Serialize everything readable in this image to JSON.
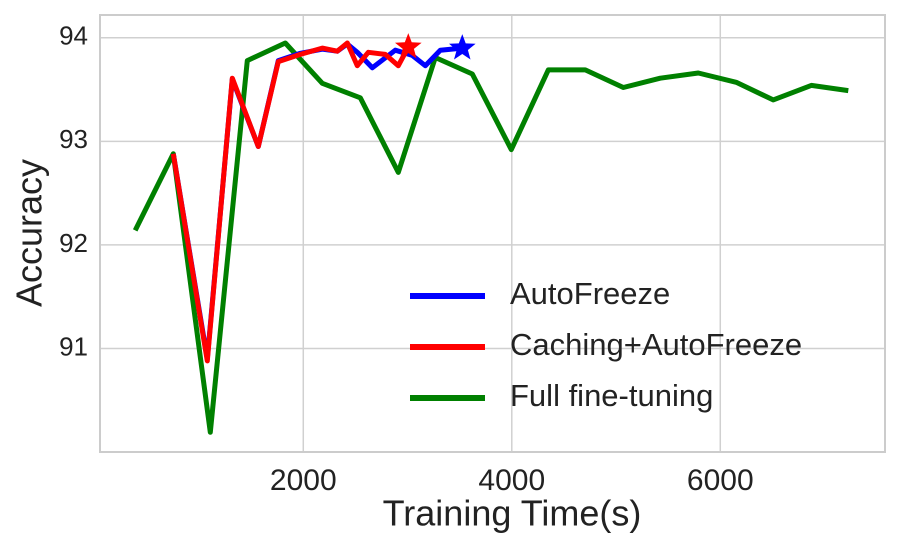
{
  "chart_data": {
    "type": "line",
    "x_label": "Training Time(s)",
    "y_label": "Accuracy",
    "xlim": [
      50,
      7580
    ],
    "ylim": [
      90.0,
      94.22
    ],
    "xticks": [
      2000,
      4000,
      6000
    ],
    "yticks": [
      91,
      92,
      93,
      94
    ],
    "grid": true,
    "legend_position": "lower right",
    "series": [
      {
        "name": "AutoFreeze",
        "color": "#0000ff",
        "end_marker": "star",
        "x": [
          753,
          1079,
          1319,
          1568,
          1760,
          1971,
          2182,
          2326,
          2422,
          2518,
          2662,
          2883,
          3046,
          3170,
          3314,
          3525
        ],
        "values": [
          92.88,
          90.9,
          93.6,
          92.95,
          93.78,
          93.85,
          93.89,
          93.87,
          93.94,
          93.86,
          93.71,
          93.88,
          93.83,
          93.73,
          93.88,
          93.9
        ]
      },
      {
        "name": "Caching+AutoFreeze",
        "color": "#ff0000",
        "end_marker": "star",
        "x": [
          753,
          1079,
          1319,
          1568,
          1760,
          1971,
          2182,
          2326,
          2422,
          2518,
          2624,
          2787,
          2911,
          3007
        ],
        "values": [
          92.88,
          90.88,
          93.61,
          92.95,
          93.77,
          93.84,
          93.9,
          93.87,
          93.95,
          93.73,
          93.86,
          93.84,
          93.73,
          93.91
        ]
      },
      {
        "name": "Full fine-tuning",
        "color": "#008000",
        "x": [
          388,
          753,
          1108,
          1463,
          1827,
          2182,
          2547,
          2911,
          3266,
          3621,
          3995,
          4350,
          4705,
          5070,
          5424,
          5789,
          6153,
          6508,
          6873,
          7228
        ],
        "values": [
          92.14,
          92.88,
          90.19,
          93.78,
          93.95,
          93.56,
          93.42,
          92.7,
          93.81,
          93.65,
          92.92,
          93.69,
          93.69,
          93.52,
          93.61,
          93.66,
          93.57,
          93.4,
          93.54,
          93.49
        ]
      }
    ]
  }
}
